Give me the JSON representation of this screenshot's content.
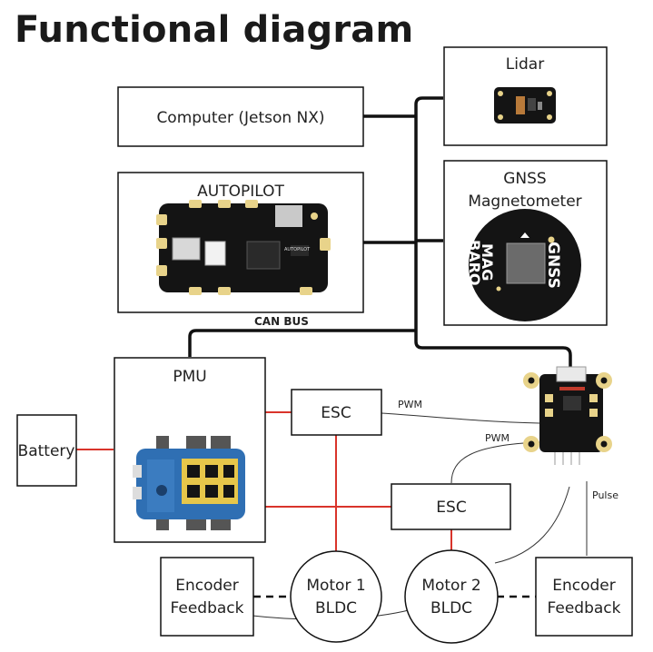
{
  "title": "Functional diagram",
  "nodes": {
    "computer": "Computer (Jetson NX)",
    "autopilot": "AUTOPILOT",
    "lidar": "Lidar",
    "gnss_line1": "GNSS",
    "gnss_line2": "Magnetometer",
    "pmu": "PMU",
    "battery": "Battery",
    "esc1": "ESC",
    "esc2": "ESC",
    "motor1_line1": "Motor 1",
    "motor1_line2": "BLDC",
    "motor2_line1": "Motor 2",
    "motor2_line2": "BLDC",
    "encoder1_line1": "Encoder",
    "encoder1_line2": "Feedback",
    "encoder2_line1": "Encoder",
    "encoder2_line2": "Feedback"
  },
  "edge_labels": {
    "can_bus": "CAN BUS",
    "pwm1": "PWM",
    "pwm2": "PWM",
    "pulse": "Pulse"
  },
  "board_text": {
    "autopilot_chip": "AUTOPILOT",
    "gnss_mag": "MAG",
    "gnss_baro": "BARO",
    "gnss_gnss": "GNSS"
  },
  "colors": {
    "bus": "#111111",
    "power": "#d9342b",
    "signal": "#333333",
    "board_black": "#141414",
    "board_blue": "#2f6fb3",
    "pad_gold": "#e8d38a"
  }
}
